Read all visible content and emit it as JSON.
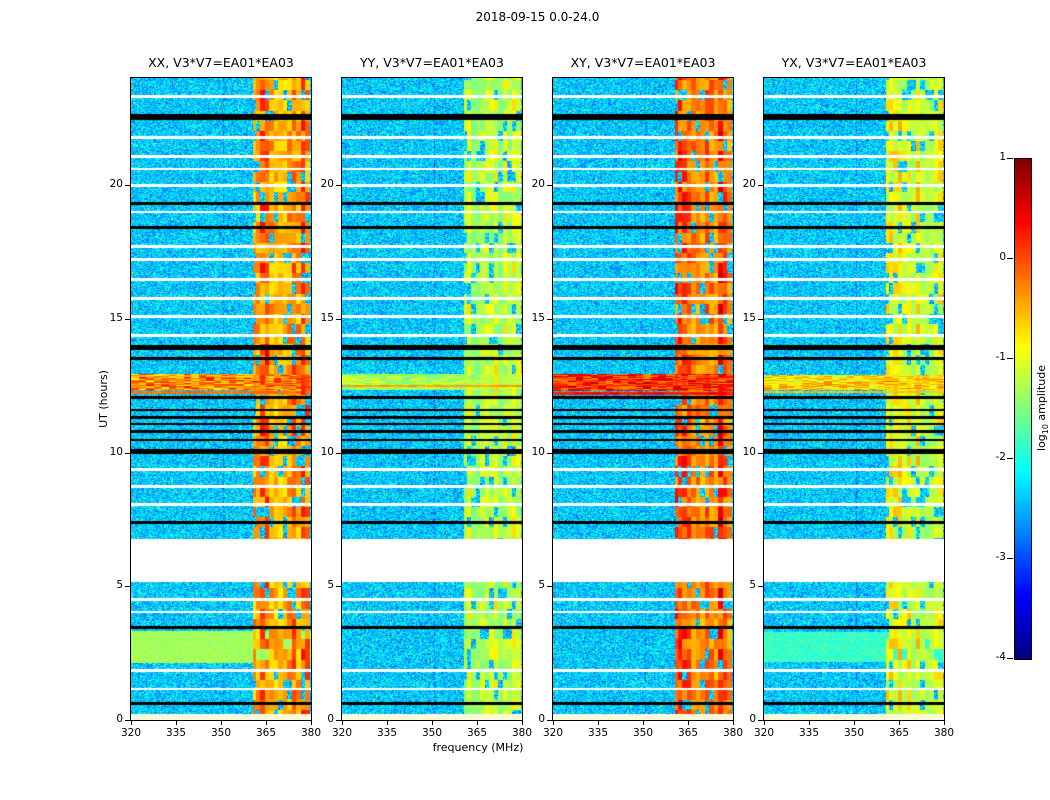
{
  "chart_data": {
    "type": "heatmap",
    "title": "2018-09-15 0.0-24.0",
    "xlabel": "frequency (MHz)",
    "ylabel": "UT (hours)",
    "x_range_mhz": [
      320,
      380
    ],
    "y_range_hours": [
      0,
      24
    ],
    "xticks": [
      320,
      335,
      350,
      365,
      380
    ],
    "yticks": [
      0,
      5,
      10,
      15,
      20
    ],
    "colormap": "jet",
    "colorbar": {
      "label_pre": "log",
      "label_sub": "10",
      "label_post": " amplitude",
      "ticks": [
        1,
        0,
        -1,
        -2,
        -3,
        -4
      ],
      "vmin": -4,
      "vmax": 1
    },
    "panels": [
      {
        "title": "XX, V3*V7=EA01*EA03",
        "seed": 1,
        "band": {
          "base": -0.95,
          "spread": 1.45
        },
        "burst": {
          "t0": 12.35,
          "t1": 12.95,
          "base": -0.9,
          "spread": 1.2
        },
        "lines": [
          {
            "t": 12.27,
            "h": 0.1,
            "v": -0.3
          }
        ],
        "bands": [
          {
            "t0": 2.15,
            "t1": 3.35,
            "base": -1.5,
            "spread": 0.35
          }
        ]
      },
      {
        "title": "YY, V3*V7=EA01*EA03",
        "seed": 2,
        "band": {
          "base": -1.65,
          "spread": 1.05
        },
        "burst": {
          "t0": 12.35,
          "t1": 12.95,
          "base": -1.7,
          "spread": 0.8
        },
        "lines": [
          {
            "t": 12.5,
            "h": 0.1,
            "v": -0.55
          }
        ],
        "bands": []
      },
      {
        "title": "XY, V3*V7=EA01*EA03",
        "seed": 3,
        "band": {
          "base": -0.75,
          "spread": 1.55
        },
        "burst": {
          "t0": 12.3,
          "t1": 12.95,
          "base": -0.4,
          "spread": 1.1
        },
        "lines": [
          {
            "t": 12.22,
            "h": 0.12,
            "v": 0.2
          }
        ],
        "bands": []
      },
      {
        "title": "YX, V3*V7=EA01*EA03",
        "seed": 4,
        "band": {
          "base": -1.55,
          "spread": 1.25
        },
        "burst": {
          "t0": 12.35,
          "t1": 12.9,
          "base": -1.2,
          "spread": 1.0
        },
        "lines": [
          {
            "t": 12.27,
            "h": 0.08,
            "v": -0.7
          }
        ],
        "bands": [
          {
            "t0": 2.2,
            "t1": 3.3,
            "base": -2.1,
            "spread": 0.5
          }
        ]
      }
    ],
    "shared_features": {
      "background": {
        "base": -2.9,
        "spread": 1.0
      },
      "rfi_band_mhz": [
        360,
        380
      ],
      "data_gap_hours": [
        5.15,
        6.75
      ],
      "stripe_colors": {
        "white": "#ffffff",
        "black": "#000000",
        "pale": "#fbf9d8"
      },
      "stripes": [
        {
          "t": 23.3,
          "h": 0.1,
          "type": "white"
        },
        {
          "t": 22.55,
          "h": 0.22,
          "type": "black"
        },
        {
          "t": 21.75,
          "h": 0.12,
          "type": "white"
        },
        {
          "t": 21.05,
          "h": 0.1,
          "type": "white"
        },
        {
          "t": 20.6,
          "h": 0.08,
          "type": "white"
        },
        {
          "t": 19.95,
          "h": 0.1,
          "type": "white"
        },
        {
          "t": 19.3,
          "h": 0.1,
          "type": "black"
        },
        {
          "t": 19.0,
          "h": 0.08,
          "type": "white"
        },
        {
          "t": 18.4,
          "h": 0.12,
          "type": "black"
        },
        {
          "t": 17.7,
          "h": 0.1,
          "type": "white"
        },
        {
          "t": 17.2,
          "h": 0.1,
          "type": "white"
        },
        {
          "t": 16.45,
          "h": 0.1,
          "type": "white"
        },
        {
          "t": 15.75,
          "h": 0.1,
          "type": "white"
        },
        {
          "t": 15.05,
          "h": 0.12,
          "type": "white"
        },
        {
          "t": 14.35,
          "h": 0.1,
          "type": "white"
        },
        {
          "t": 13.92,
          "h": 0.18,
          "type": "black"
        },
        {
          "t": 13.5,
          "h": 0.12,
          "type": "black"
        },
        {
          "t": 12.05,
          "h": 0.1,
          "type": "black"
        },
        {
          "t": 11.6,
          "h": 0.08,
          "type": "black"
        },
        {
          "t": 11.3,
          "h": 0.1,
          "type": "black"
        },
        {
          "t": 11.05,
          "h": 0.08,
          "type": "black"
        },
        {
          "t": 10.75,
          "h": 0.1,
          "type": "black"
        },
        {
          "t": 10.45,
          "h": 0.08,
          "type": "black"
        },
        {
          "t": 10.0,
          "h": 0.2,
          "type": "black"
        },
        {
          "t": 9.35,
          "h": 0.1,
          "type": "white"
        },
        {
          "t": 8.7,
          "h": 0.1,
          "type": "white"
        },
        {
          "t": 8.05,
          "h": 0.12,
          "type": "white"
        },
        {
          "t": 7.35,
          "h": 0.12,
          "type": "black"
        },
        {
          "t": 4.5,
          "h": 0.1,
          "type": "white"
        },
        {
          "t": 4.05,
          "h": 0.08,
          "type": "white"
        },
        {
          "t": 3.45,
          "h": 0.12,
          "type": "black"
        },
        {
          "t": 1.85,
          "h": 0.1,
          "type": "white"
        },
        {
          "t": 1.15,
          "h": 0.08,
          "type": "white"
        },
        {
          "t": 0.6,
          "h": 0.1,
          "type": "black"
        },
        {
          "t": 0.1,
          "h": 0.22,
          "type": "pale"
        }
      ]
    }
  }
}
